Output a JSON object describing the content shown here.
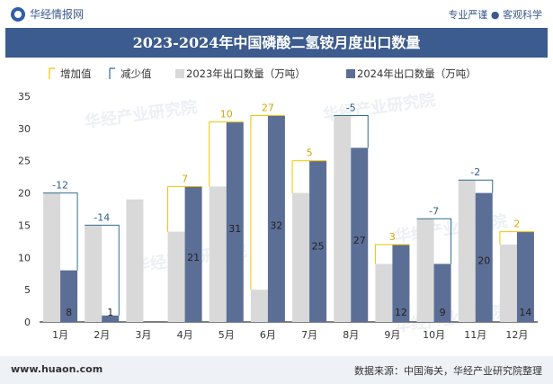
{
  "header": {
    "brand": "华经情报网",
    "tagline": "专业严谨 ● 客观科学"
  },
  "chart_title": "2023-2024年中国磷酸二氢铵月度出口数量",
  "footer": {
    "site": "www.huaon.com",
    "source": "数据来源：中国海关，华经产业研究院整理"
  },
  "watermark": "华经产业研究院",
  "colors": {
    "series2023": "#d9d9d9",
    "series2024": "#5b6e96",
    "increase": "#f2c200",
    "decrease": "#2f6f8f",
    "title_bg": "#3c5b8e"
  },
  "chart_data": {
    "type": "bar",
    "title": "2023-2024年中国磷酸二氢铵月度出口数量",
    "categories": [
      "1月",
      "2月",
      "3月",
      "4月",
      "5月",
      "6月",
      "7月",
      "8月",
      "9月",
      "10月",
      "11月",
      "12月"
    ],
    "series": [
      {
        "name": "2023年出口数量（万吨）",
        "values": [
          20,
          15,
          19,
          14,
          21,
          5,
          20,
          32,
          9,
          16,
          22,
          12
        ]
      },
      {
        "name": "2024年出口数量（万吨）",
        "values": [
          8,
          1,
          0,
          21,
          31,
          32,
          25,
          27,
          12,
          9,
          20,
          14
        ]
      }
    ],
    "diff_labels": [
      "-12",
      "-14",
      "",
      "7",
      "10",
      "27",
      "5",
      "-5",
      "3",
      "-7",
      "-2",
      "2"
    ],
    "legend": [
      "增加值",
      "减少值",
      "2023年出口数量（万吨）",
      "2024年出口数量（万吨）"
    ],
    "legend_position": "top",
    "yticks": [
      0,
      5,
      10,
      15,
      20,
      25,
      30,
      35
    ],
    "ylim": [
      0,
      35
    ],
    "xlabel": "",
    "ylabel": "",
    "grid": false
  }
}
